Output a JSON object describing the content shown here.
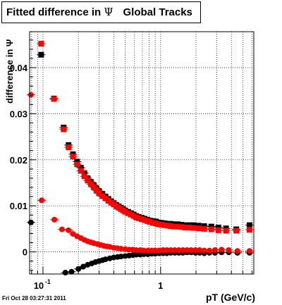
{
  "title": {
    "prefix": "Fitted difference in ",
    "symbol": "Ψ",
    "suffix": "Global Tracks"
  },
  "timestamp": "Fri Oct 28 03:27:31 2011",
  "colors": {
    "red": "#ff0000",
    "black": "#000000",
    "grid": "#000000"
  },
  "chart_data": {
    "type": "scatter",
    "title": "Fitted difference in Ψ Global Tracks",
    "xlabel": "pT (GeV/c)",
    "ylabel": "difference in Ψ",
    "xscale": "log",
    "xlim": [
      0.077,
      6.2
    ],
    "ylim": [
      -0.0048,
      0.0478
    ],
    "grid": true,
    "xticks": [
      {
        "value": 0.1,
        "label": "10",
        "exponent": "-1"
      },
      {
        "value": 1,
        "label": "1",
        "exponent": ""
      }
    ],
    "yticks": [
      {
        "value": 0,
        "label": "0"
      },
      {
        "value": 0.01,
        "label": "0.01"
      },
      {
        "value": 0.02,
        "label": "0.02"
      },
      {
        "value": 0.03,
        "label": "0.03"
      },
      {
        "value": 0.04,
        "label": "0.04"
      }
    ],
    "series": [
      {
        "color": "#000000",
        "marker": "square",
        "points": [
          [
            0.0965,
            0.0428
          ],
          [
            0.124,
            0.0333
          ],
          [
            0.15,
            0.027
          ],
          [
            0.165,
            0.0232
          ],
          [
            0.18,
            0.0212
          ],
          [
            0.195,
            0.0196
          ],
          [
            0.21,
            0.0183
          ],
          [
            0.225,
            0.0171
          ],
          [
            0.24,
            0.016
          ],
          [
            0.255,
            0.0152
          ],
          [
            0.27,
            0.0145
          ],
          [
            0.285,
            0.0138
          ],
          [
            0.3,
            0.0132
          ],
          [
            0.32,
            0.0126
          ],
          [
            0.34,
            0.012
          ],
          [
            0.36,
            0.0115
          ],
          [
            0.38,
            0.011
          ],
          [
            0.4,
            0.0106
          ],
          [
            0.42,
            0.0102
          ],
          [
            0.44,
            0.0099
          ],
          [
            0.46,
            0.0096
          ],
          [
            0.48,
            0.0093
          ],
          [
            0.5,
            0.009
          ],
          [
            0.53,
            0.0087
          ],
          [
            0.56,
            0.0084
          ],
          [
            0.59,
            0.0081
          ],
          [
            0.62,
            0.0078
          ],
          [
            0.65,
            0.0076
          ],
          [
            0.69,
            0.0074
          ],
          [
            0.73,
            0.0072
          ],
          [
            0.77,
            0.007
          ],
          [
            0.81,
            0.0068
          ],
          [
            0.86,
            0.0067
          ],
          [
            0.91,
            0.0066
          ],
          [
            0.96,
            0.0064
          ],
          [
            1.02,
            0.0063
          ],
          [
            1.08,
            0.0062
          ],
          [
            1.15,
            0.0061
          ],
          [
            1.22,
            0.0061
          ],
          [
            1.3,
            0.006
          ],
          [
            1.4,
            0.006
          ],
          [
            1.5,
            0.0059
          ],
          [
            1.62,
            0.0058
          ],
          [
            1.75,
            0.0058
          ],
          [
            1.9,
            0.0058
          ],
          [
            2.1,
            0.0057
          ],
          [
            2.35,
            0.0056
          ],
          [
            2.7,
            0.0055
          ],
          [
            3.1,
            0.0053
          ],
          [
            3.6,
            0.0051
          ],
          [
            4.4,
            0.0049
          ],
          [
            5.7,
            0.0058
          ]
        ]
      },
      {
        "color": "#ff0000",
        "marker": "square",
        "points": [
          [
            0.0965,
            0.0452
          ],
          [
            0.124,
            0.0332
          ],
          [
            0.15,
            0.0266
          ],
          [
            0.165,
            0.0227
          ],
          [
            0.18,
            0.0207
          ],
          [
            0.195,
            0.019
          ],
          [
            0.21,
            0.0176
          ],
          [
            0.225,
            0.0164
          ],
          [
            0.24,
            0.0155
          ],
          [
            0.255,
            0.0147
          ],
          [
            0.27,
            0.014
          ],
          [
            0.285,
            0.0133
          ],
          [
            0.3,
            0.0127
          ],
          [
            0.32,
            0.0121
          ],
          [
            0.34,
            0.0116
          ],
          [
            0.36,
            0.0111
          ],
          [
            0.38,
            0.0107
          ],
          [
            0.4,
            0.0103
          ],
          [
            0.42,
            0.0099
          ],
          [
            0.44,
            0.0096
          ],
          [
            0.46,
            0.0093
          ],
          [
            0.48,
            0.009
          ],
          [
            0.5,
            0.0087
          ],
          [
            0.53,
            0.0084
          ],
          [
            0.56,
            0.0081
          ],
          [
            0.59,
            0.0078
          ],
          [
            0.62,
            0.0075
          ],
          [
            0.65,
            0.0073
          ],
          [
            0.69,
            0.0071
          ],
          [
            0.73,
            0.0069
          ],
          [
            0.77,
            0.0067
          ],
          [
            0.81,
            0.0065
          ],
          [
            0.86,
            0.0063
          ],
          [
            0.91,
            0.0062
          ],
          [
            0.96,
            0.006
          ],
          [
            1.02,
            0.0059
          ],
          [
            1.08,
            0.0058
          ],
          [
            1.15,
            0.0057
          ],
          [
            1.22,
            0.0056
          ],
          [
            1.3,
            0.0055
          ],
          [
            1.4,
            0.0055
          ],
          [
            1.5,
            0.0054
          ],
          [
            1.62,
            0.0053
          ],
          [
            1.75,
            0.0053
          ],
          [
            1.9,
            0.0052
          ],
          [
            2.1,
            0.0051
          ],
          [
            2.35,
            0.005
          ],
          [
            2.7,
            0.0049
          ],
          [
            3.1,
            0.0047
          ],
          [
            3.6,
            0.0046
          ],
          [
            4.4,
            0.0046
          ],
          [
            5.7,
            0.0048
          ]
        ]
      },
      {
        "color": "#000000",
        "marker": "circle",
        "points": [
          [
            0.079,
            0.0064
          ],
          [
            0.155,
            -0.0045
          ],
          [
            0.175,
            -0.0043
          ],
          [
            0.2,
            -0.0037
          ],
          [
            0.22,
            -0.0032
          ],
          [
            0.24,
            -0.0028
          ],
          [
            0.26,
            -0.0025
          ],
          [
            0.28,
            -0.0022
          ],
          [
            0.3,
            -0.002
          ],
          [
            0.32,
            -0.0018
          ],
          [
            0.34,
            -0.0016
          ],
          [
            0.37,
            -0.0014
          ],
          [
            0.4,
            -0.0012
          ],
          [
            0.43,
            -0.0011
          ],
          [
            0.46,
            -0.001
          ],
          [
            0.5,
            -0.0009
          ],
          [
            0.54,
            -0.0008
          ],
          [
            0.58,
            -0.0007
          ],
          [
            0.62,
            -0.0006
          ],
          [
            0.67,
            -0.0006
          ],
          [
            0.72,
            -0.0005
          ],
          [
            0.78,
            -0.0005
          ],
          [
            0.84,
            -0.0004
          ],
          [
            0.9,
            -0.0004
          ],
          [
            0.97,
            -0.0003
          ],
          [
            1.05,
            -0.0003
          ],
          [
            1.13,
            -0.0003
          ],
          [
            1.22,
            -0.0002
          ],
          [
            1.32,
            -0.0002
          ],
          [
            1.43,
            -0.0002
          ],
          [
            1.55,
            -0.0002
          ],
          [
            1.68,
            -0.0001
          ],
          [
            1.82,
            -0.0001
          ],
          [
            1.98,
            -0.0002
          ],
          [
            2.15,
            -0.0002
          ],
          [
            2.35,
            -0.0003
          ],
          [
            2.6,
            -0.0002
          ],
          [
            2.9,
            -0.0002
          ],
          [
            3.3,
            -0.0001
          ],
          [
            3.8,
            -0.0001
          ],
          [
            4.5,
            -0.0002
          ],
          [
            5.7,
            -0.0002
          ]
        ]
      },
      {
        "color": "#ff0000",
        "marker": "circle",
        "points": [
          [
            0.079,
            0.0341
          ],
          [
            0.0975,
            0.0112
          ],
          [
            0.125,
            0.007
          ],
          [
            0.145,
            0.0049
          ],
          [
            0.165,
            0.0047
          ],
          [
            0.18,
            0.0039
          ],
          [
            0.195,
            0.0034
          ],
          [
            0.21,
            0.003
          ],
          [
            0.225,
            0.0026
          ],
          [
            0.24,
            0.0023
          ],
          [
            0.255,
            0.0021
          ],
          [
            0.27,
            0.0019
          ],
          [
            0.29,
            0.0017
          ],
          [
            0.31,
            0.0015
          ],
          [
            0.33,
            0.0013
          ],
          [
            0.35,
            0.0012
          ],
          [
            0.37,
            0.0011
          ],
          [
            0.4,
            0.0009
          ],
          [
            0.43,
            0.0008
          ],
          [
            0.46,
            0.0007
          ],
          [
            0.5,
            0.0006
          ],
          [
            0.54,
            0.0005
          ],
          [
            0.58,
            0.0005
          ],
          [
            0.62,
            0.0004
          ],
          [
            0.67,
            0.0004
          ],
          [
            0.72,
            0.0003
          ],
          [
            0.78,
            0.0003
          ],
          [
            0.84,
            0.0003
          ],
          [
            0.9,
            0.0003
          ],
          [
            0.97,
            0.0003
          ],
          [
            1.05,
            0.0004
          ],
          [
            1.13,
            0.0004
          ],
          [
            1.22,
            0.0004
          ],
          [
            1.32,
            0.0004
          ],
          [
            1.43,
            0.0004
          ],
          [
            1.55,
            0.0004
          ],
          [
            1.68,
            0.0004
          ],
          [
            1.82,
            0.0004
          ],
          [
            1.98,
            0.0004
          ],
          [
            2.15,
            0.0004
          ],
          [
            2.35,
            0.0003
          ],
          [
            2.6,
            0.0003
          ],
          [
            2.9,
            0.0004
          ],
          [
            3.3,
            0.0005
          ],
          [
            3.8,
            0.0004
          ],
          [
            4.5,
            0.0002
          ],
          [
            5.7,
            0.0002
          ]
        ]
      }
    ]
  }
}
